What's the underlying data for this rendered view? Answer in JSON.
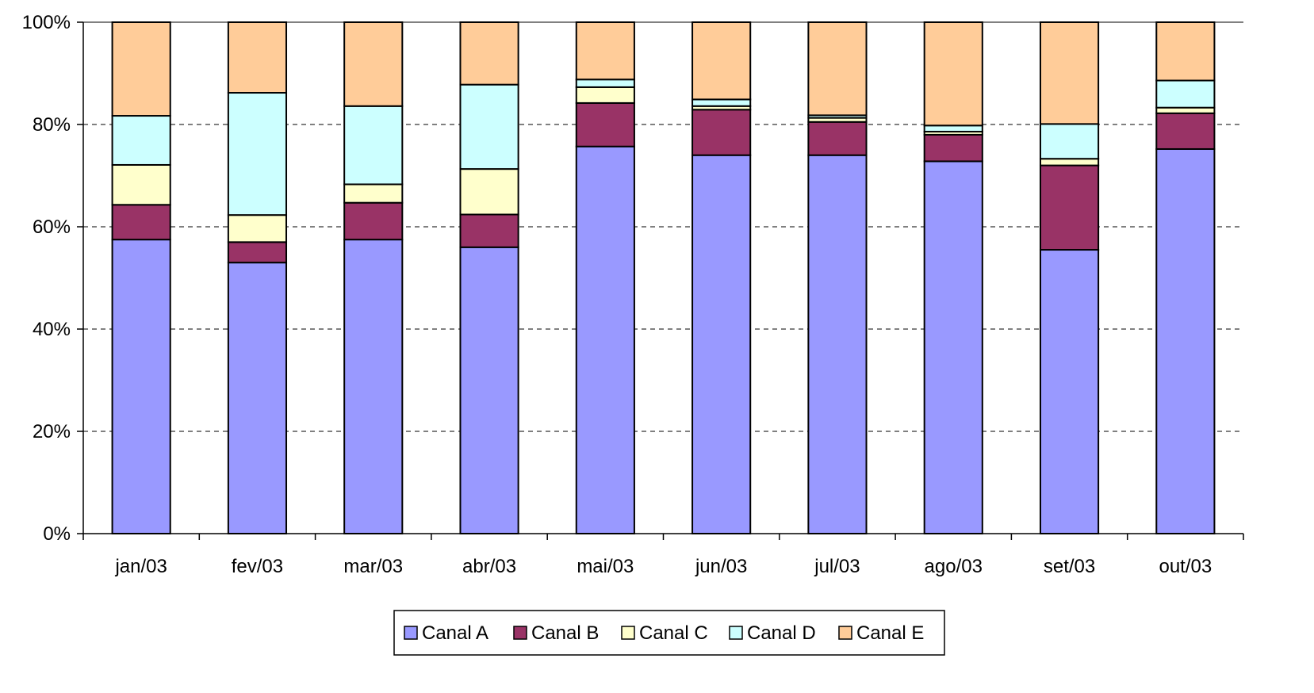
{
  "chart_data": {
    "type": "bar",
    "stacked": true,
    "percent": true,
    "categories": [
      "jan/03",
      "fev/03",
      "mar/03",
      "abr/03",
      "mai/03",
      "jun/03",
      "jul/03",
      "ago/03",
      "set/03",
      "out/03"
    ],
    "series": [
      {
        "name": "Canal A",
        "color": "#9999ff",
        "values": [
          57.5,
          53,
          57.5,
          56,
          75.7,
          74,
          74,
          72.8,
          55.5,
          75.2
        ]
      },
      {
        "name": "Canal B",
        "color": "#993366",
        "values": [
          6.8,
          4,
          7.2,
          6.4,
          8.5,
          8.9,
          6.5,
          5.2,
          16.5,
          7
        ]
      },
      {
        "name": "Canal C",
        "color": "#ffffcc",
        "values": [
          7.8,
          5.3,
          3.6,
          8.9,
          3.1,
          0.7,
          0.8,
          0.6,
          1.3,
          1.1
        ]
      },
      {
        "name": "Canal D",
        "color": "#ccffff",
        "values": [
          9.6,
          23.9,
          15.3,
          16.5,
          1.5,
          1.3,
          0.5,
          1.2,
          6.8,
          5.3
        ]
      },
      {
        "name": "Canal E",
        "color": "#ffcc99",
        "values": [
          18.3,
          13.8,
          16.4,
          12.2,
          11.2,
          15.1,
          18.2,
          20.2,
          19.9,
          11.4
        ]
      }
    ],
    "yticks": [
      "0%",
      "20%",
      "40%",
      "60%",
      "80%",
      "100%"
    ],
    "ylim": [
      0,
      100
    ],
    "grid": true,
    "legend": "bottom"
  }
}
